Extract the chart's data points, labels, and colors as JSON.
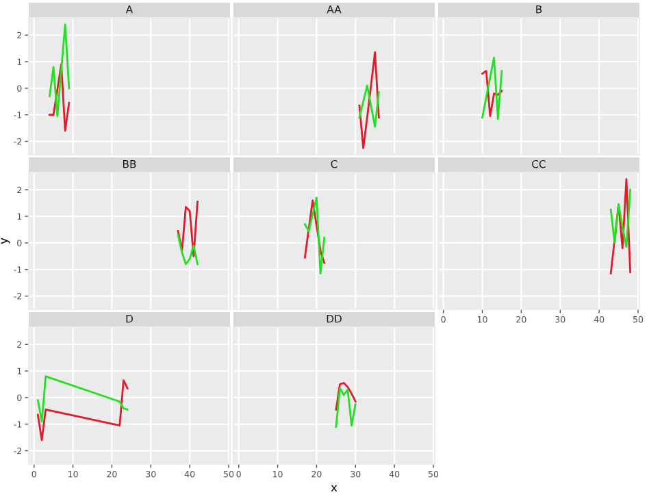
{
  "chart_data": [
    {
      "type": "line",
      "title": "A",
      "xlim": [
        -1.35,
        50.35
      ],
      "ylim": [
        -2.5,
        2.65
      ],
      "xticks": [
        0,
        10,
        20,
        30,
        40,
        50
      ],
      "yticks": [
        -2,
        -1,
        0,
        1,
        2
      ],
      "grid": true,
      "tick_labels": "y",
      "series": [
        {
          "color": "#e31a2c",
          "x": [
            4,
            5,
            7,
            8,
            9
          ],
          "values": [
            -1,
            -1,
            0.9,
            -1.6,
            -0.55
          ]
        },
        {
          "color": "#22e022",
          "x": [
            4,
            5,
            6,
            8,
            9
          ],
          "values": [
            -0.3,
            0.8,
            -1.05,
            2.4,
            0
          ]
        }
      ]
    },
    {
      "type": "line",
      "title": "AA",
      "xlim": [
        -1.35,
        50.35
      ],
      "ylim": [
        -2.5,
        2.65
      ],
      "xticks": [
        0,
        10,
        20,
        30,
        40,
        50
      ],
      "yticks": [
        -2,
        -1,
        0,
        1,
        2
      ],
      "grid": true,
      "tick_labels": false,
      "series": [
        {
          "color": "#e31a2c",
          "x": [
            31,
            32,
            33,
            35,
            36
          ],
          "values": [
            -0.65,
            -2.25,
            -1.1,
            1.35,
            -1.1
          ]
        },
        {
          "color": "#22e022",
          "x": [
            31,
            33,
            35,
            36
          ],
          "values": [
            -1.1,
            0.1,
            -1.45,
            -0.15
          ]
        }
      ]
    },
    {
      "type": "line",
      "title": "B",
      "xlim": [
        -1.35,
        50.35
      ],
      "ylim": [
        -2.5,
        2.65
      ],
      "xticks": [
        0,
        10,
        20,
        30,
        40,
        50
      ],
      "yticks": [
        -2,
        -1,
        0,
        1,
        2
      ],
      "grid": true,
      "tick_labels": false,
      "series": [
        {
          "color": "#e31a2c",
          "x": [
            10,
            11,
            12,
            13,
            14,
            15
          ],
          "values": [
            0.55,
            0.65,
            -1.05,
            -0.2,
            -0.25,
            -0.1
          ]
        },
        {
          "color": "#22e022",
          "x": [
            10,
            13,
            14,
            15
          ],
          "values": [
            -1.1,
            1.15,
            -1.15,
            0.65
          ]
        }
      ]
    },
    {
      "type": "line",
      "title": "BB",
      "ylabel": "y",
      "xlim": [
        -1.35,
        50.35
      ],
      "ylim": [
        -2.5,
        2.65
      ],
      "xticks": [
        0,
        10,
        20,
        30,
        40,
        50
      ],
      "yticks": [
        -2,
        -1,
        0,
        1,
        2
      ],
      "grid": true,
      "tick_labels": "y",
      "series": [
        {
          "color": "#e31a2c",
          "x": [
            37,
            38,
            39,
            40,
            41,
            42
          ],
          "values": [
            0.45,
            -0.3,
            1.35,
            1.2,
            -0.5,
            1.55
          ]
        },
        {
          "color": "#22e022",
          "x": [
            37,
            38,
            39,
            40,
            41,
            42
          ],
          "values": [
            0.3,
            -0.35,
            -0.8,
            -0.6,
            -0.1,
            -0.8
          ]
        }
      ]
    },
    {
      "type": "line",
      "title": "C",
      "xlim": [
        -1.35,
        50.35
      ],
      "ylim": [
        -2.5,
        2.65
      ],
      "xticks": [
        0,
        10,
        20,
        30,
        40,
        50
      ],
      "yticks": [
        -2,
        -1,
        0,
        1,
        2
      ],
      "grid": true,
      "tick_labels": false,
      "series": [
        {
          "color": "#e31a2c",
          "x": [
            17,
            19,
            21,
            22
          ],
          "values": [
            -0.55,
            1.6,
            -0.3,
            -0.75
          ]
        },
        {
          "color": "#22e022",
          "x": [
            17,
            18,
            20,
            21,
            22
          ],
          "values": [
            0.7,
            0.45,
            1.7,
            -1.15,
            0.2
          ]
        }
      ]
    },
    {
      "type": "line",
      "title": "CC",
      "xlim": [
        -1.35,
        50.35
      ],
      "ylim": [
        -2.5,
        2.65
      ],
      "xticks": [
        0,
        10,
        20,
        30,
        40,
        50
      ],
      "yticks": [
        -2,
        -1,
        0,
        1,
        2
      ],
      "grid": true,
      "tick_labels": "x",
      "series": [
        {
          "color": "#e31a2c",
          "x": [
            43,
            45,
            46,
            47,
            48
          ],
          "values": [
            -1.15,
            1.45,
            -0.2,
            2.4,
            -1.1
          ]
        },
        {
          "color": "#22e022",
          "x": [
            43,
            44,
            45,
            46,
            47,
            48
          ],
          "values": [
            1.25,
            0,
            1.45,
            0.6,
            -0.15,
            2
          ]
        }
      ]
    },
    {
      "type": "line",
      "title": "D",
      "xlim": [
        -1.35,
        50.35
      ],
      "ylim": [
        -2.5,
        2.65
      ],
      "xticks": [
        0,
        10,
        20,
        30,
        40,
        50
      ],
      "yticks": [
        -2,
        -1,
        0,
        1,
        2
      ],
      "grid": true,
      "series": [
        {
          "color": "#e31a2c",
          "x": [
            1,
            2,
            3,
            22,
            23,
            24
          ],
          "values": [
            -0.65,
            -1.6,
            -0.45,
            -1.05,
            0.65,
            0.35
          ]
        },
        {
          "color": "#22e022",
          "x": [
            1,
            2,
            3,
            22,
            23,
            24
          ],
          "values": [
            -0.1,
            -0.9,
            0.8,
            -0.15,
            -0.4,
            -0.45
          ]
        }
      ]
    },
    {
      "type": "line",
      "title": "DD",
      "xlabel": "x",
      "xlim": [
        -1.35,
        50.35
      ],
      "ylim": [
        -2.5,
        2.65
      ],
      "xticks": [
        0,
        10,
        20,
        30,
        40,
        50
      ],
      "yticks": [
        -2,
        -1,
        0,
        1,
        2
      ],
      "grid": true,
      "tick_labels": "x",
      "series": [
        {
          "color": "#e31a2c",
          "x": [
            25,
            26,
            27,
            28,
            29,
            30
          ],
          "values": [
            -0.45,
            0.5,
            0.55,
            0.4,
            0.15,
            -0.15
          ]
        },
        {
          "color": "#22e022",
          "x": [
            25,
            26,
            27,
            28,
            29,
            30
          ],
          "values": [
            -1.1,
            0.35,
            0.1,
            0.3,
            -1.05,
            -0.25
          ]
        }
      ]
    }
  ]
}
